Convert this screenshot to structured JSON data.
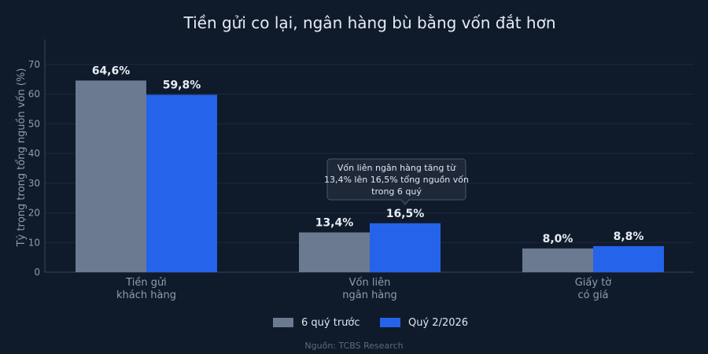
{
  "chart_data": {
    "type": "bar",
    "title": "Tiền gửi co lại, ngân hàng bù bằng vốn đắt hơn",
    "ylabel": "Tỷ trọng trong tổng nguồn vốn (%)",
    "xlabel": "",
    "ylim": [
      0,
      70
    ],
    "yticks": [
      0,
      10,
      20,
      30,
      40,
      50,
      60,
      70
    ],
    "grid": true,
    "legend_position": "bottom-center",
    "categories": [
      [
        "Tiền gửi",
        "khách hàng"
      ],
      [
        "Vốn liên",
        "ngân hàng"
      ],
      [
        "Giấy tờ",
        "có giá"
      ]
    ],
    "series": [
      {
        "name": "6 quý trước",
        "values": [
          64.6,
          13.4,
          8.0
        ],
        "labels": [
          "64,6%",
          "13,4%",
          "8,0%"
        ],
        "color": "#6b7a90"
      },
      {
        "name": "Quý 2/2026",
        "values": [
          59.8,
          16.5,
          8.8
        ],
        "labels": [
          "59,8%",
          "16,5%",
          "8,8%"
        ],
        "color": "#2563eb"
      }
    ],
    "annotation": {
      "lines": [
        "Vốn liên ngân hàng tăng từ",
        "13,4% lên 16,5% tổng nguồn vốn",
        "trong 6 quý"
      ],
      "target_category": 1,
      "target_series": 1
    },
    "source": "Nguồn: TCBS Research"
  }
}
